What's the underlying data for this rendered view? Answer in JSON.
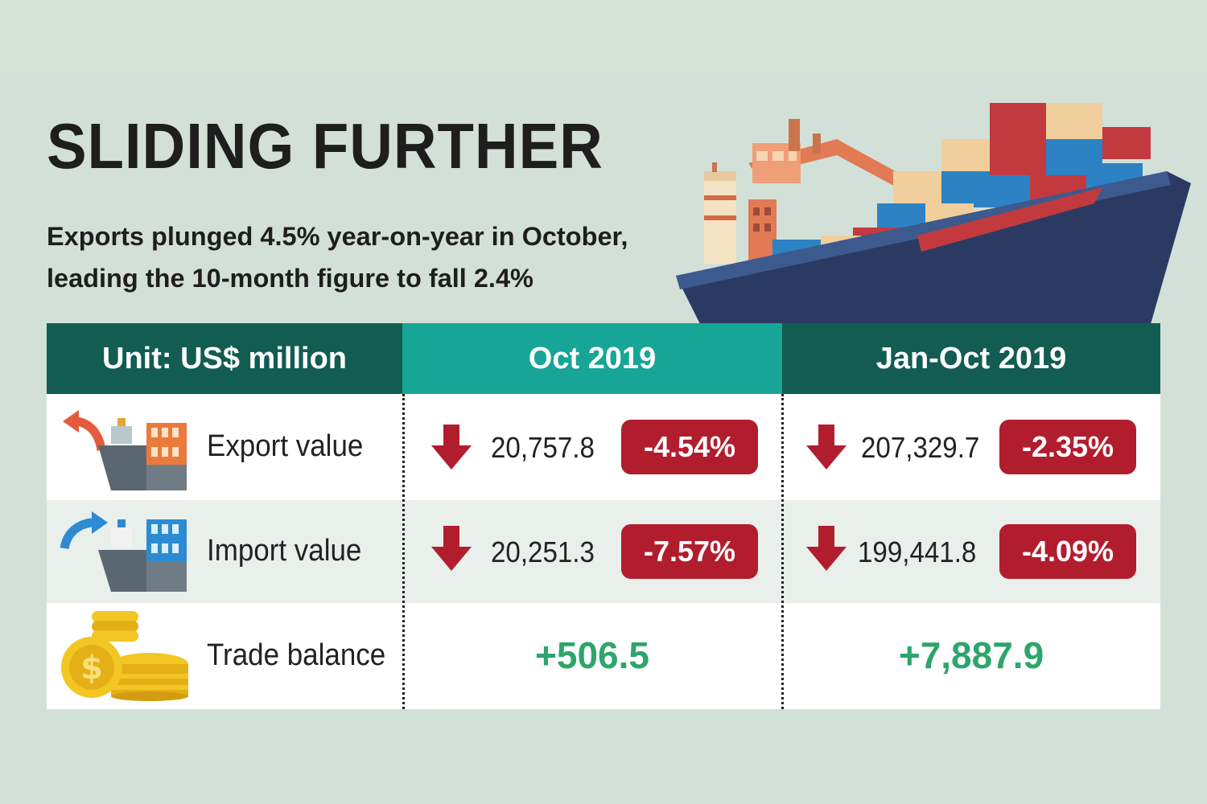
{
  "title": "SLIDING FURTHER",
  "subtitle": {
    "line1": "Exports plunged 4.5% year-on-year in October,",
    "line2": "leading the 10-month figure to fall 2.4%"
  },
  "table": {
    "headers": {
      "unit": "Unit: US$ million",
      "oct": "Oct 2019",
      "jan_oct": "Jan-Oct 2019"
    },
    "rows": [
      {
        "label": "Export value",
        "oct_value": "20,757.8",
        "oct_change": "-4.54%",
        "ytd_value": "207,329.7",
        "ytd_change": "-2.35%"
      },
      {
        "label": "Import value",
        "oct_value": "20,251.3",
        "oct_change": "-7.57%",
        "ytd_value": "199,441.8",
        "ytd_change": "-4.09%"
      },
      {
        "label": "Trade balance",
        "oct_value": "+506.5",
        "ytd_value": "+7,887.9"
      }
    ]
  },
  "colors": {
    "background": "#d3e0d7",
    "header_dark": "#125c52",
    "header_teal": "#17a597",
    "negative_badge": "#b21d2e",
    "positive_text": "#2ea56b",
    "down_arrow": "#b21d2e"
  },
  "icons": {
    "export": "export-ship-icon",
    "import": "import-ship-icon",
    "balance": "coins-icon",
    "down": "down-arrow-icon",
    "hero": "cargo-ship-illustration"
  }
}
